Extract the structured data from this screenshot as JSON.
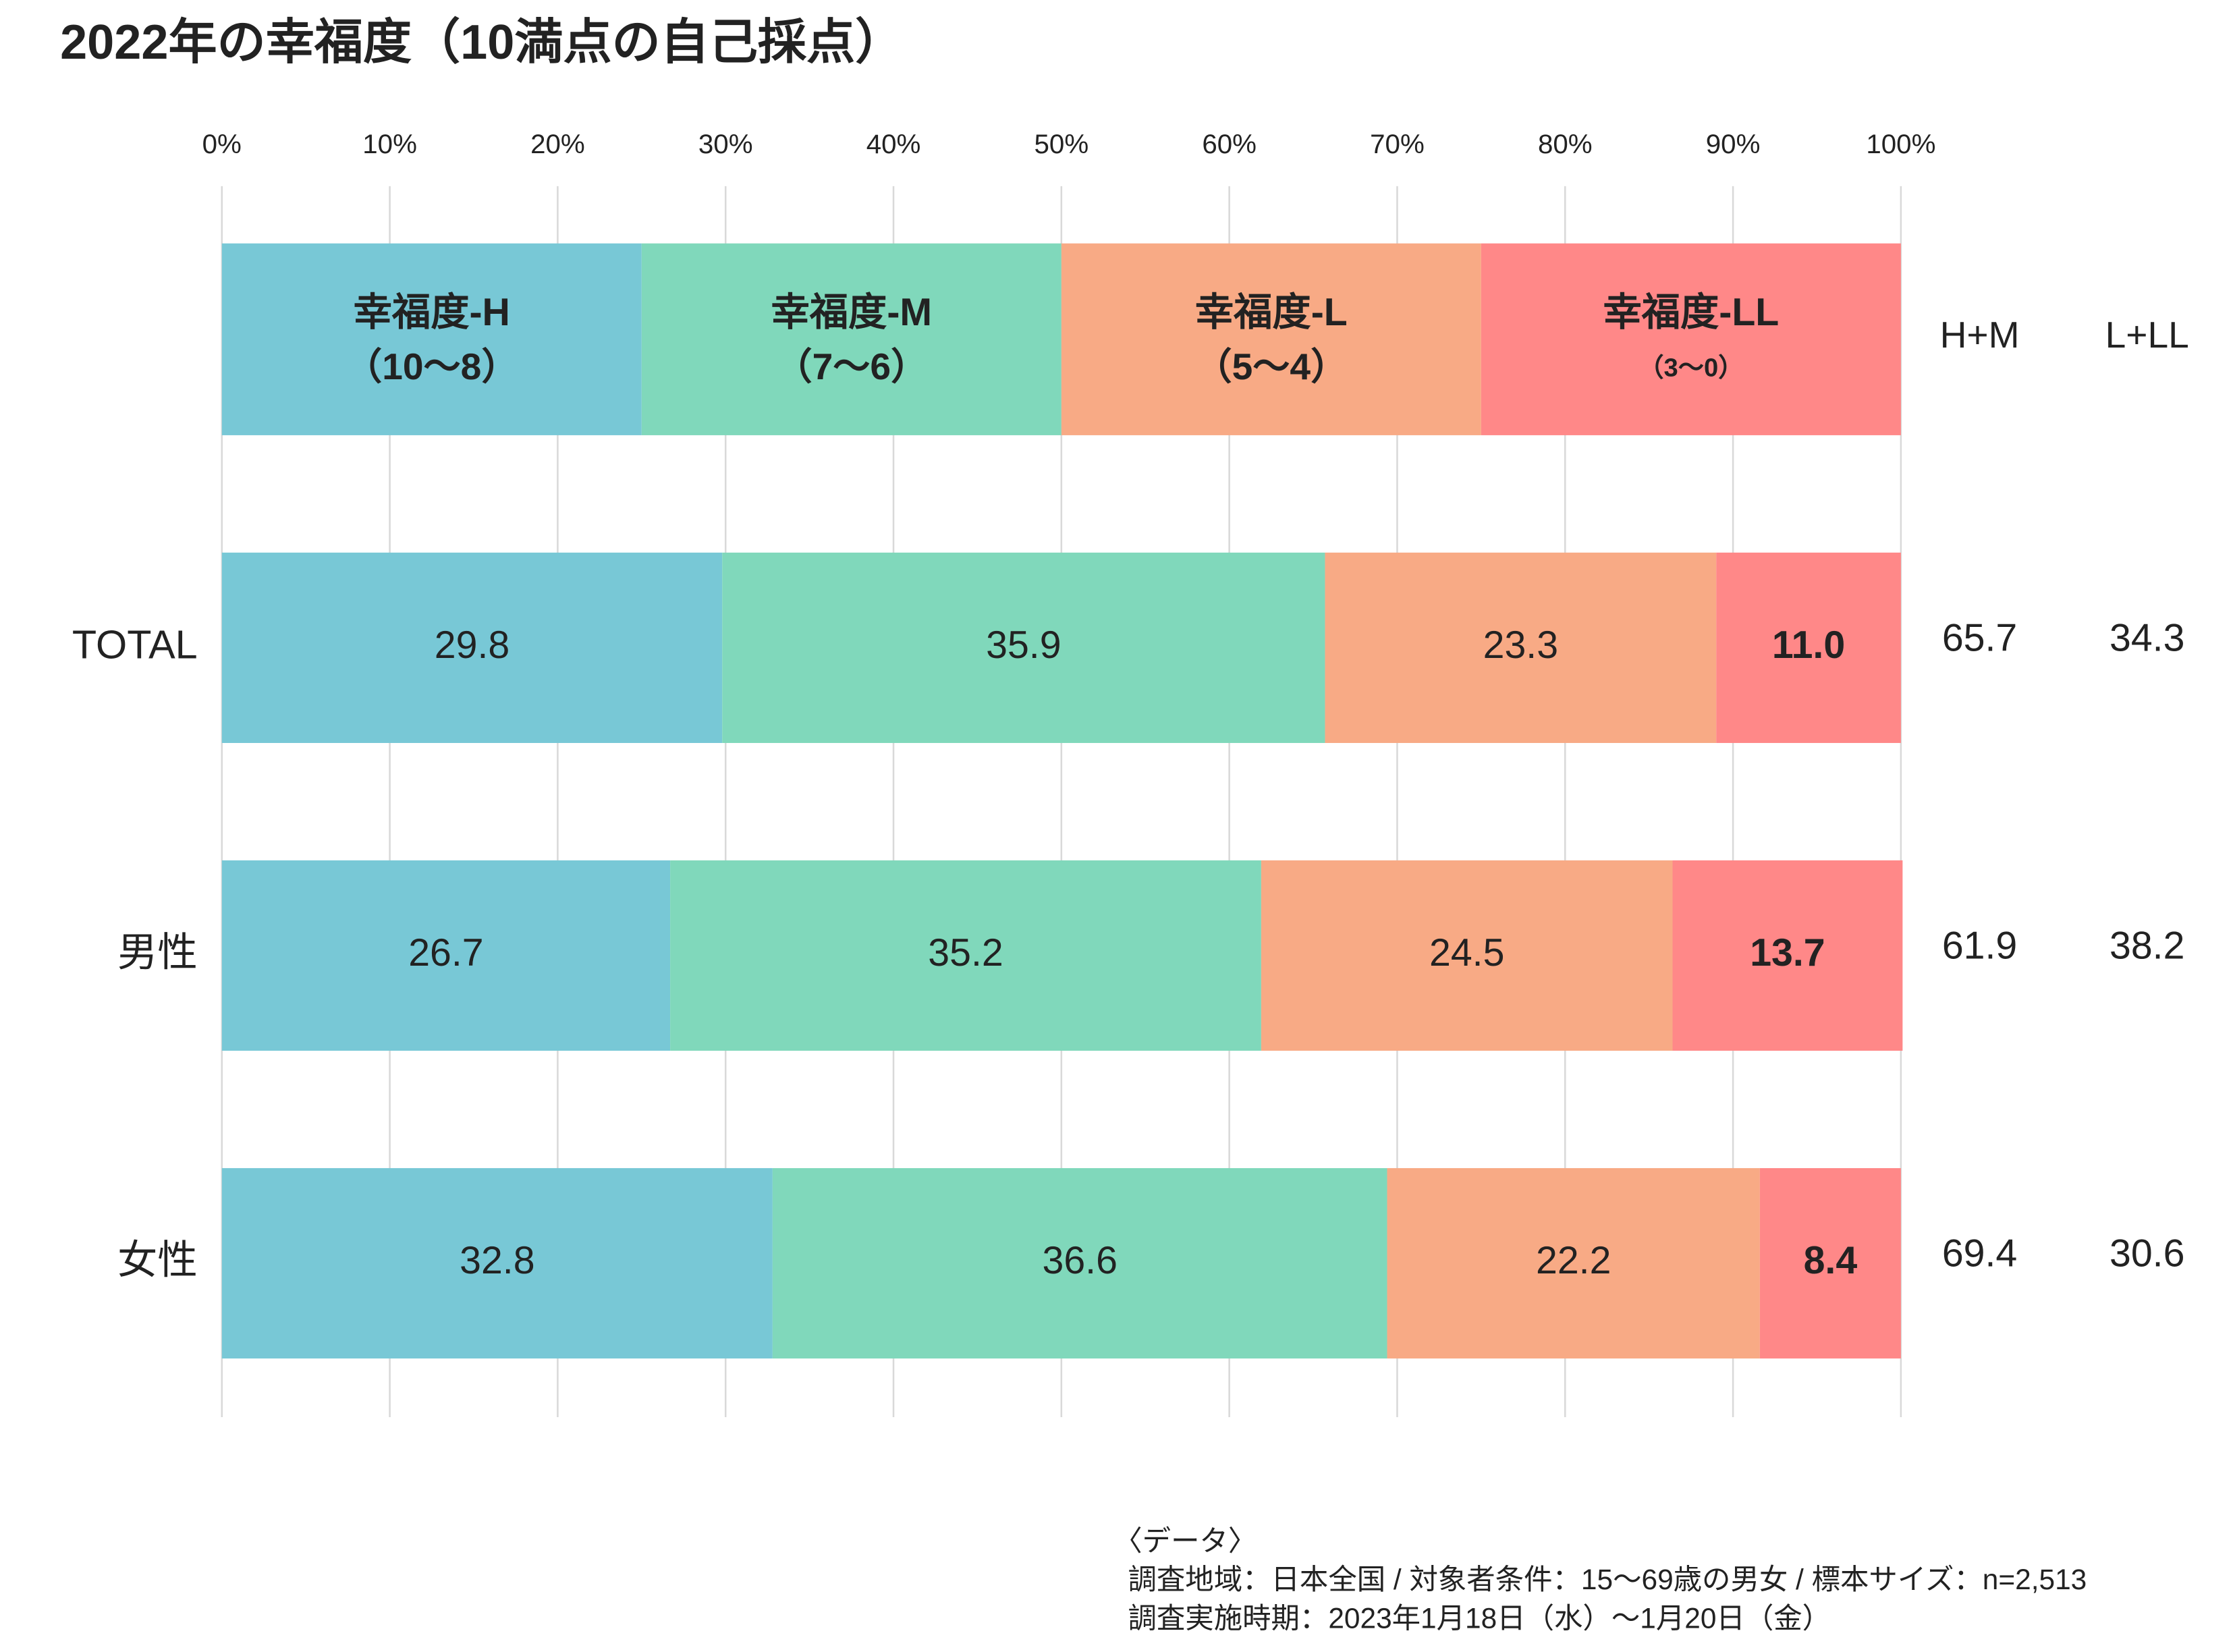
{
  "chart_data": {
    "type": "stacked-bar-horizontal",
    "title": "2022年の幸福度（10満点の自己採点）",
    "categories": [
      "TOTAL",
      "男性",
      "女性"
    ],
    "series": [
      {
        "name": "幸福度-H",
        "range": "（10～8）",
        "color": "#78c8d6",
        "values": [
          29.8,
          26.7,
          32.8
        ]
      },
      {
        "name": "幸福度-M",
        "range": "（7～6）",
        "color": "#80d8bb",
        "values": [
          35.9,
          35.2,
          36.6
        ]
      },
      {
        "name": "幸福度-L",
        "range": "（5～4）",
        "color": "#f8aa85",
        "values": [
          23.3,
          24.5,
          22.2
        ]
      },
      {
        "name": "幸福度-LL",
        "range": "（3～0）",
        "color": "#ff8888",
        "values": [
          11.0,
          13.7,
          8.4
        ],
        "value_labels": [
          "11.0",
          "13.7",
          "8.4"
        ]
      }
    ],
    "columns": [
      {
        "name": "H+M",
        "values": [
          65.7,
          61.9,
          69.4
        ]
      },
      {
        "name": "L+LL",
        "values": [
          34.3,
          38.2,
          30.6
        ]
      }
    ],
    "xlim": [
      0,
      100
    ],
    "xticks": [
      {
        "value": 0,
        "label": "0%"
      },
      {
        "value": 10,
        "label": "10%"
      },
      {
        "value": 20,
        "label": "20%"
      },
      {
        "value": 30,
        "label": "30%"
      },
      {
        "value": 40,
        "label": "40%"
      },
      {
        "value": 50,
        "label": "50%"
      },
      {
        "value": 60,
        "label": "60%"
      },
      {
        "value": 70,
        "label": "70%"
      },
      {
        "value": 80,
        "label": "80%"
      },
      {
        "value": 90,
        "label": "90%"
      },
      {
        "value": 100,
        "label": "100%"
      }
    ],
    "grid": true,
    "notes": [
      "〈データ〉",
      "調査地域：日本全国 / 対象者条件：15～69歳の男女 / 標本サイズ：n=2,513",
      "調査実施時期：2023年1月18日（水）～1月20日（金）"
    ]
  }
}
